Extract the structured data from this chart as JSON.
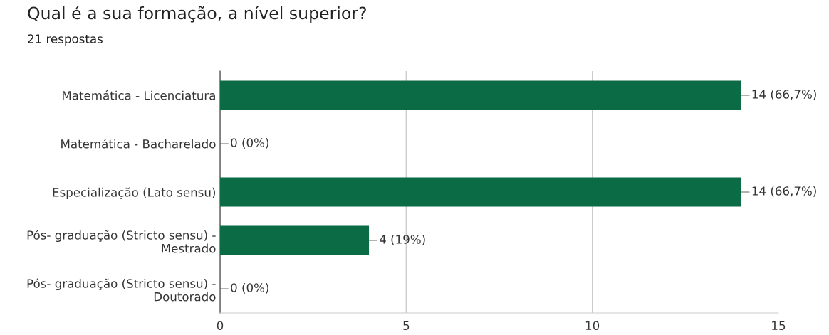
{
  "chart_data": {
    "type": "bar",
    "orientation": "horizontal",
    "title": "Qual é a sua formação, a nível superior?",
    "subtitle": "21 respostas",
    "categories": [
      "Matemática - Licenciatura",
      "Matemática - Bacharelado",
      "Especialização (Lato sensu)",
      "Pós- graduação (Stricto sensu) -\nMestrado",
      "Pós- graduação (Stricto sensu) -\nDoutorado"
    ],
    "values": [
      14,
      0,
      14,
      4,
      0
    ],
    "value_labels": [
      "14 (66,7%)",
      "0 (0%)",
      "14 (66,7%)",
      "4 (19%)",
      "0 (0%)"
    ],
    "color": "#0b6b45",
    "xlim": [
      0,
      15
    ],
    "xticks": [
      0,
      5,
      10,
      15
    ],
    "grid": "x",
    "legend": false
  }
}
